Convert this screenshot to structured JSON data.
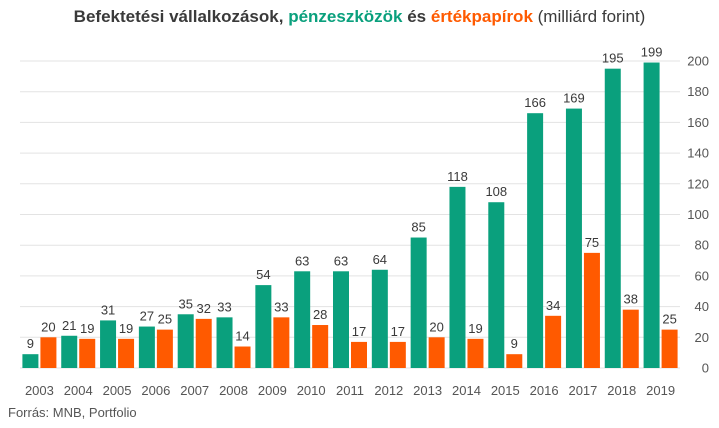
{
  "title": {
    "part1": "Befektetési vállalkozások, ",
    "part2": "pénzeszközök",
    "part3": " és ",
    "part4": "értékpapírok",
    "part5": " (milliárd forint)"
  },
  "source": "Forrás: MNB, Portfolio",
  "colors": {
    "green": "#0aa07d",
    "orange": "#ff5a00",
    "grid": "#e3e3e3"
  },
  "chart_data": {
    "type": "bar",
    "categories": [
      "2003",
      "2004",
      "2005",
      "2006",
      "2007",
      "2008",
      "2009",
      "2010",
      "2011",
      "2012",
      "2013",
      "2014",
      "2015",
      "2016",
      "2017",
      "2018",
      "2019"
    ],
    "series": [
      {
        "name": "pénzeszközök",
        "values": [
          9,
          21,
          31,
          27,
          35,
          33,
          54,
          63,
          63,
          64,
          85,
          118,
          108,
          166,
          169,
          195,
          199
        ]
      },
      {
        "name": "értékpapírok",
        "values": [
          20,
          19,
          19,
          25,
          32,
          14,
          33,
          28,
          17,
          17,
          20,
          19,
          9,
          34,
          75,
          38,
          25
        ]
      }
    ],
    "ylim": [
      0,
      200
    ],
    "yticks": [
      0,
      20,
      40,
      60,
      80,
      100,
      120,
      140,
      160,
      180,
      200
    ],
    "y_axis_side": "right",
    "grid": true
  }
}
